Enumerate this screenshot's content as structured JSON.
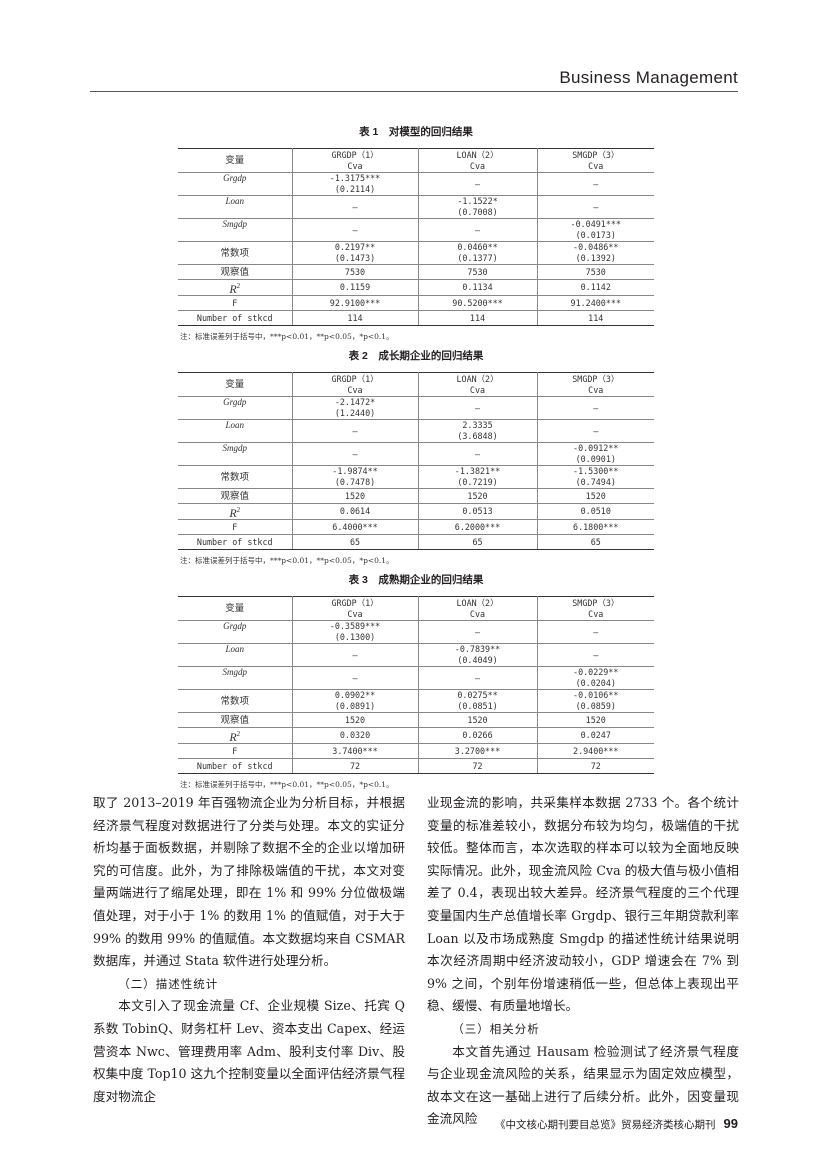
{
  "header": {
    "journal_section": "Business Management"
  },
  "tables": [
    {
      "caption": "表 1　对模型的回归结果",
      "columns": [
        "变量",
        "GRGDP（1）\nCva",
        "LOAN（2）\nCva",
        "SMGDP（3）\nCva"
      ],
      "rows": [
        {
          "label": "Grgdp",
          "style": "italic",
          "cells": [
            "-1.3175***\n(0.2114)",
            "–",
            "–"
          ]
        },
        {
          "label": "Loan",
          "style": "italic",
          "cells": [
            "–",
            "-1.1522*\n(0.7008)",
            "–"
          ]
        },
        {
          "label": "Smgdp",
          "style": "italic",
          "cells": [
            "–",
            "–",
            "-0.0491***\n(0.0173)"
          ]
        },
        {
          "label": "常数项",
          "style": "cn",
          "cells": [
            "0.2197**\n(0.1473)",
            "0.0460**\n(0.1377)",
            "-0.0486**\n(0.1392)"
          ]
        },
        {
          "label": "观察值",
          "style": "cn",
          "cells": [
            "7530",
            "7530",
            "7530"
          ]
        },
        {
          "label": "R",
          "style": "r2",
          "cells": [
            "0.1159",
            "0.1134",
            "0.1142"
          ]
        },
        {
          "label": "F",
          "style": "plain",
          "cells": [
            "92.9100***",
            "90.5200***",
            "91.2400***"
          ]
        },
        {
          "label": "Number of stkcd",
          "style": "plain",
          "cells": [
            "114",
            "114",
            "114"
          ]
        }
      ],
      "note": "注：标准误差列于括号中，***p<0.01，**p<0.05，*p<0.1。"
    },
    {
      "caption": "表 2　成长期企业的回归结果",
      "columns": [
        "变量",
        "GRGDP（1）\nCva",
        "LOAN（2）\nCva",
        "SMGDP（3）\nCva"
      ],
      "rows": [
        {
          "label": "Grgdp",
          "style": "italic",
          "cells": [
            "-2.1472*\n(1.2440)",
            "–",
            "–"
          ]
        },
        {
          "label": "Loan",
          "style": "italic",
          "cells": [
            "–",
            "2.3335\n(3.6848)",
            "–"
          ]
        },
        {
          "label": "Smgdp",
          "style": "italic",
          "cells": [
            "–",
            "–",
            "-0.0912**\n(0.0901)"
          ]
        },
        {
          "label": "常数项",
          "style": "cn",
          "cells": [
            "-1.9874**\n(0.7478)",
            "-1.3821**\n(0.7219)",
            "-1.5300**\n(0.7494)"
          ]
        },
        {
          "label": "观察值",
          "style": "cn",
          "cells": [
            "1520",
            "1520",
            "1520"
          ]
        },
        {
          "label": "R",
          "style": "r2",
          "cells": [
            "0.0614",
            "0.0513",
            "0.0510"
          ]
        },
        {
          "label": "F",
          "style": "plain",
          "cells": [
            "6.4000***",
            "6.2000***",
            "6.1800***"
          ]
        },
        {
          "label": "Number of stkcd",
          "style": "plain",
          "cells": [
            "65",
            "65",
            "65"
          ]
        }
      ],
      "note": "注：标准误差列于括号中，***p<0.01，**p<0.05，*p<0.1。"
    },
    {
      "caption": "表 3　成熟期企业的回归结果",
      "columns": [
        "变量",
        "GRGDP（1）\nCva",
        "LOAN（2）\nCva",
        "SMGDP（3）\nCva"
      ],
      "rows": [
        {
          "label": "Grgdp",
          "style": "italic",
          "cells": [
            "-0.3589***\n(0.1300)",
            "–",
            "–"
          ]
        },
        {
          "label": "Loan",
          "style": "italic",
          "cells": [
            "–",
            "-0.7839**\n(0.4049)",
            "–"
          ]
        },
        {
          "label": "Smgdp",
          "style": "italic",
          "cells": [
            "–",
            "–",
            "-0.0229**\n(0.0204)"
          ]
        },
        {
          "label": "常数项",
          "style": "cn",
          "cells": [
            "0.0902**\n(0.0891)",
            "0.0275**\n(0.0851)",
            "-0.0106**\n(0.0859)"
          ]
        },
        {
          "label": "观察值",
          "style": "cn",
          "cells": [
            "1520",
            "1520",
            "1520"
          ]
        },
        {
          "label": "R",
          "style": "r2",
          "cells": [
            "0.0320",
            "0.0266",
            "0.0247"
          ]
        },
        {
          "label": "F",
          "style": "plain",
          "cells": [
            "3.7400***",
            "3.2700***",
            "2.9400***"
          ]
        },
        {
          "label": "Number of stkcd",
          "style": "plain",
          "cells": [
            "72",
            "72",
            "72"
          ]
        }
      ],
      "note": "注：标准误差列于括号中，***p<0.01，**p<0.05，*p<0.1。"
    }
  ],
  "body": {
    "left": {
      "p1": "取了 2013–2019 年百强物流企业为分析目标，并根据经济景气程度对数据进行了分类与处理。本文的实证分析均基于面板数据，并剔除了数据不全的企业以增加研究的可信度。此外，为了排除极端值的干扰，本文对变量两端进行了缩尾处理，即在 1% 和 99% 分位做极端值处理，对于小于 1% 的数用 1% 的值赋值，对于大于 99% 的数用 99% 的值赋值。本文数据均来自 CSMAR 数据库，并通过 Stata 软件进行处理分析。",
      "h2": "（二）描述性统计",
      "p2": "本文引入了现金流量 Cf、企业规模 Size、托宾 Q 系数 TobinQ、财务杠杆 Lev、资本支出 Capex、经运营资本 Nwc、管理费用率 Adm、股利支付率 Div、股权集中度 Top10 这九个控制变量以全面评估经济景气程度对物流企"
    },
    "right": {
      "p1": "业现金流的影响，共采集样本数据 2733 个。各个统计变量的标准差较小，数据分布较为均匀，极端值的干扰较低。整体而言，本次选取的样本可以较为全面地反映实际情况。此外，现金流风险 Cva 的极大值与极小值相差了 0.4，表现出较大差异。经济景气程度的三个代理变量国内生产总值增长率 Grgdp、银行三年期贷款利率 Loan 以及市场成熟度 Smgdp 的描述性统计结果说明本次经济周期中经济波动较小，GDP 增速会在 7% 到 9% 之间，个别年份增速稍低一些，但总体上表现出平稳、缓慢、有质量地增长。",
      "h3": "（三）相关分析",
      "p2": "本文首先通过 Hausam 检验测试了经济景气程度与企业现金流风险的关系，结果显示为固定效应模型，故本文在这一基础上进行了后续分析。此外，因变量现金流风险"
    }
  },
  "footer": {
    "text": "《中文核心期刊要目总览》贸易经济类核心期刊",
    "page_number": "99"
  }
}
